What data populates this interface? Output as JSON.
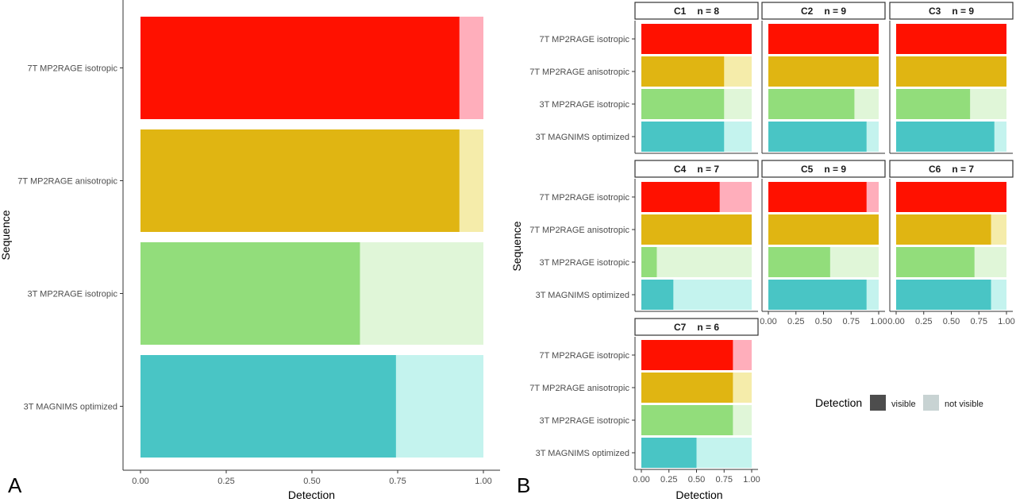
{
  "panel_labels": [
    "A",
    "B"
  ],
  "legend": {
    "title": "Detection",
    "items": [
      "visible",
      "not visible"
    ],
    "swatches": [
      "#4d4d4d",
      "#c8d3d3"
    ]
  },
  "colors": {
    "7T MP2RAGE isotropic": {
      "visible": "#ff1100",
      "not_visible": "#ffaebb"
    },
    "7T MP2RAGE anisotropic": {
      "visible": "#e0b512",
      "not_visible": "#f5ecaa"
    },
    "3T MP2RAGE isotropic": {
      "visible": "#92dd7b",
      "not_visible": "#e0f6d8"
    },
    "3T MAGNIMS optimized": {
      "visible": "#49c5c5",
      "not_visible": "#c4f3ee"
    }
  },
  "chart_data": [
    {
      "type": "bar",
      "orientation": "horizontal",
      "stacked": true,
      "panel": "A",
      "xlabel": "Detection",
      "ylabel": "Sequence",
      "xlim": [
        0,
        1
      ],
      "xticks": [
        "0.00",
        "0.25",
        "0.50",
        "0.75",
        "1.00"
      ],
      "categories": [
        "7T MP2RAGE isotropic",
        "7T MP2RAGE anisotropic",
        "3T MP2RAGE isotropic",
        "3T MAGNIMS optimized"
      ],
      "series": [
        {
          "name": "visible",
          "values": [
            0.93,
            0.93,
            0.64,
            0.745
          ]
        },
        {
          "name": "not visible",
          "values": [
            0.07,
            0.07,
            0.36,
            0.255
          ]
        }
      ]
    },
    {
      "type": "bar",
      "orientation": "horizontal",
      "stacked": true,
      "panel": "B",
      "xlabel": "Detection",
      "ylabel": "Sequence",
      "xlim": [
        0,
        1
      ],
      "xticks": [
        "0.00",
        "0.25",
        "0.50",
        "0.75",
        "1.00"
      ],
      "categories": [
        "7T MP2RAGE isotropic",
        "7T MP2RAGE anisotropic",
        "3T MP2RAGE isotropic",
        "3T MAGNIMS optimized"
      ],
      "facets": [
        {
          "id": "C1",
          "n": "n = 8",
          "visible": [
            1.0,
            0.75,
            0.75,
            0.75
          ]
        },
        {
          "id": "C2",
          "n": "n = 9",
          "visible": [
            1.0,
            1.0,
            0.78,
            0.89
          ]
        },
        {
          "id": "C3",
          "n": "n = 9",
          "visible": [
            1.0,
            1.0,
            0.67,
            0.89
          ]
        },
        {
          "id": "C4",
          "n": "n = 7",
          "visible": [
            0.71,
            1.0,
            0.14,
            0.29
          ]
        },
        {
          "id": "C5",
          "n": "n = 9",
          "visible": [
            0.89,
            1.0,
            0.56,
            0.89
          ]
        },
        {
          "id": "C6",
          "n": "n = 7",
          "visible": [
            1.0,
            0.86,
            0.71,
            0.86
          ]
        },
        {
          "id": "C7",
          "n": "n = 6",
          "visible": [
            0.83,
            0.83,
            0.83,
            0.5
          ]
        }
      ]
    }
  ]
}
